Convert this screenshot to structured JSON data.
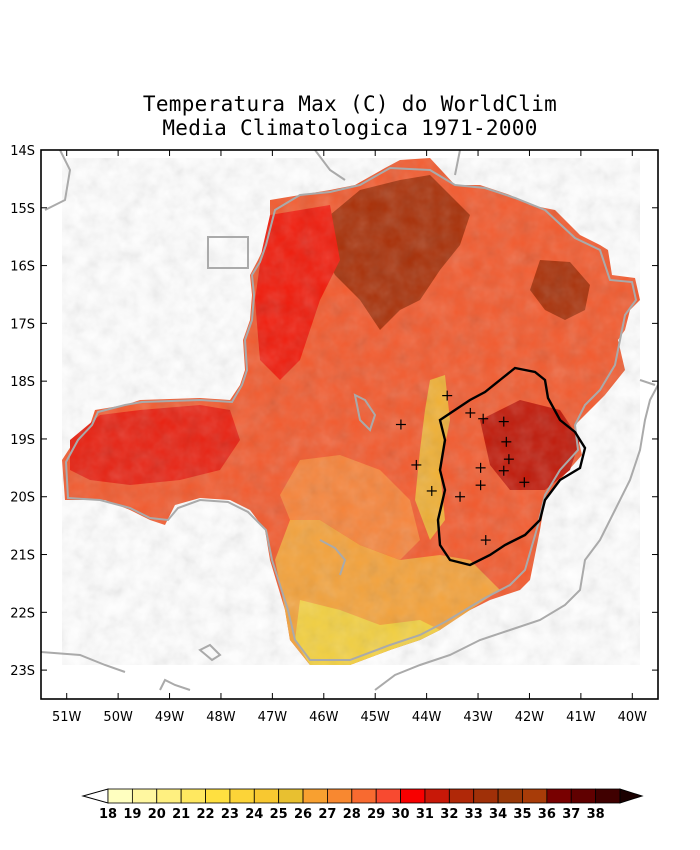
{
  "title_line1": "Temperatura Max (C) do WorldClim",
  "title_line2": "Media Climatologica 1971-2000",
  "map": {
    "lon_range": [
      -51.5,
      -39.5
    ],
    "lat_range": [
      -23.5,
      -14
    ],
    "lat_ticks": [
      "14S",
      "15S",
      "16S",
      "17S",
      "18S",
      "19S",
      "20S",
      "21S",
      "22S",
      "23S"
    ],
    "lon_ticks": [
      "51W",
      "50W",
      "49W",
      "48W",
      "47W",
      "46W",
      "45W",
      "44W",
      "43W",
      "42W",
      "41W",
      "40W"
    ],
    "stations": [
      [
        -43.6,
        -18.25
      ],
      [
        -44.5,
        -18.75
      ],
      [
        -43.15,
        -18.55
      ],
      [
        -42.9,
        -18.65
      ],
      [
        -42.5,
        -18.7
      ],
      [
        -42.45,
        -19.05
      ],
      [
        -42.4,
        -19.35
      ],
      [
        -44.2,
        -19.45
      ],
      [
        -42.95,
        -19.5
      ],
      [
        -42.5,
        -19.55
      ],
      [
        -43.9,
        -19.9
      ],
      [
        -43.35,
        -20.0
      ],
      [
        -42.95,
        -19.8
      ],
      [
        -42.1,
        -19.75
      ],
      [
        -42.85,
        -20.75
      ]
    ],
    "colors": {
      "outline": "#aaaaaa",
      "basin": "#000000",
      "frame": "#000000"
    }
  },
  "colorbar": {
    "labels": [
      "18",
      "19",
      "20",
      "21",
      "22",
      "23",
      "24",
      "25",
      "26",
      "27",
      "28",
      "29",
      "30",
      "31",
      "32",
      "33",
      "34",
      "35",
      "36",
      "37",
      "38"
    ],
    "colors": [
      "#ffffc0",
      "#fff7a0",
      "#fff080",
      "#ffe860",
      "#ffe040",
      "#fcd438",
      "#f8c830",
      "#e8c030",
      "#f8a030",
      "#f88830",
      "#f86a30",
      "#f84a30",
      "#f80000",
      "#c81808",
      "#b02808",
      "#a03008",
      "#983808",
      "#a83c08",
      "#780000",
      "#600000",
      "#400000"
    ],
    "under_color": "#ffffff",
    "over_color": "#1a0000"
  }
}
